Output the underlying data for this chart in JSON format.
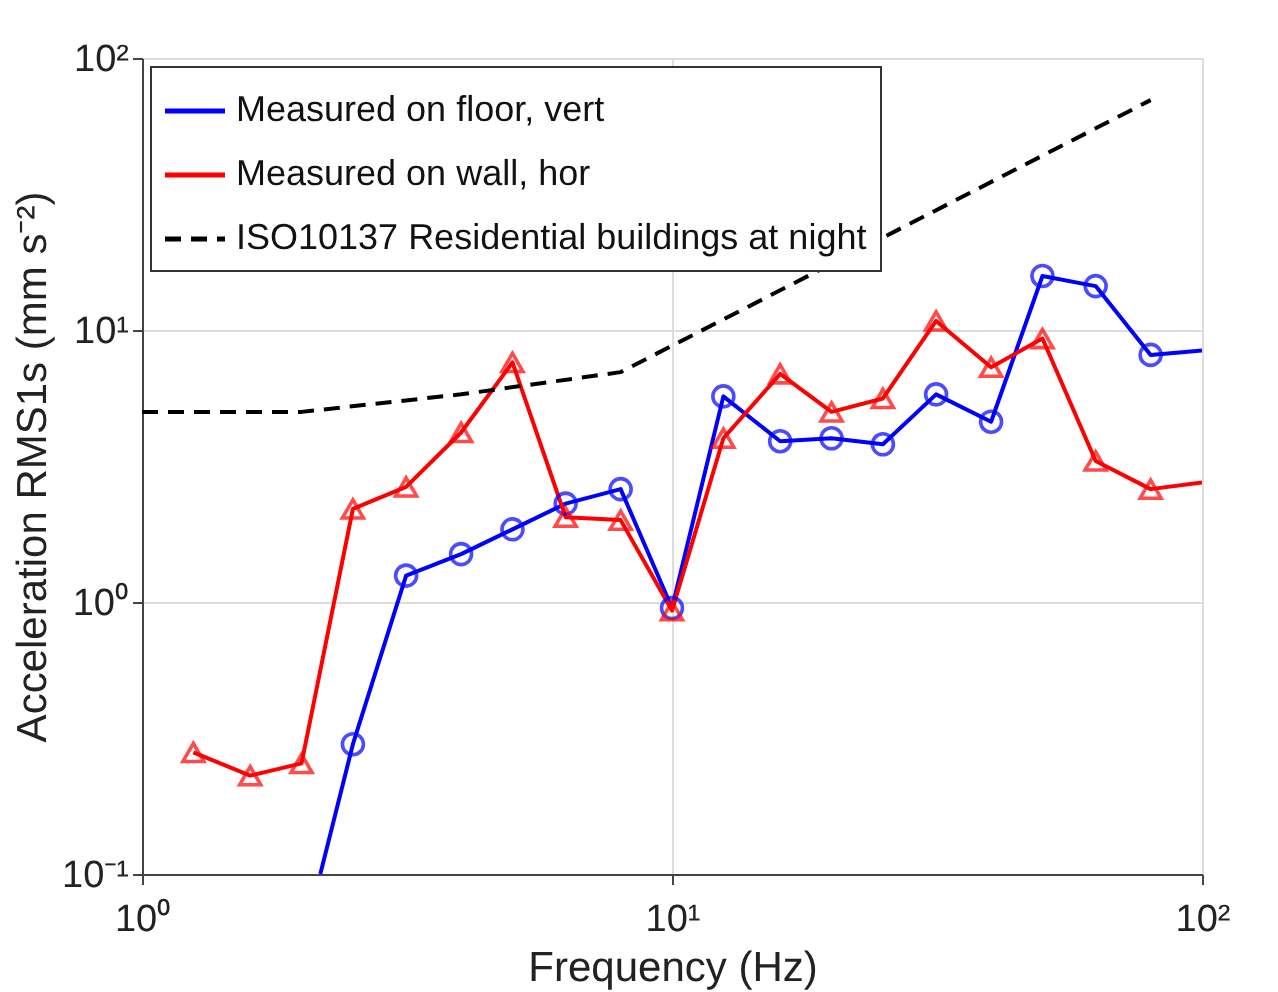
{
  "chart_data": {
    "type": "line",
    "xlabel": "Frequency (Hz)",
    "ylabel": "Acceleration RMS1s (mm s⁻²)",
    "log": "xy",
    "grid": true,
    "legend": "top left",
    "xlim": [
      1,
      100
    ],
    "ylim": [
      0.1,
      100
    ],
    "xticks": [
      {
        "value": 1,
        "label": "10⁰"
      },
      {
        "value": 10,
        "label": "10¹"
      },
      {
        "value": 100,
        "label": "10²"
      }
    ],
    "yticks": [
      {
        "value": 0.1,
        "label": "10⁻¹"
      },
      {
        "value": 1,
        "label": "10⁰"
      },
      {
        "value": 10,
        "label": "10¹"
      },
      {
        "value": 100,
        "label": "10²"
      }
    ],
    "series": [
      {
        "name": "Measured on floor, vert",
        "color": "#0000ff",
        "marker": "circle",
        "line_style": "solid",
        "x": [
          2.17,
          2.5,
          3.15,
          4,
          5,
          6.3,
          8,
          10,
          12.5,
          16,
          20,
          25,
          31.5,
          40,
          50,
          63,
          80,
          100
        ],
        "values": [
          0.1,
          0.3,
          1.25,
          1.5,
          1.85,
          2.3,
          2.6,
          0.95,
          5.7,
          3.9,
          4.0,
          3.8,
          5.8,
          4.6,
          15.8,
          14.5,
          8.1,
          8.4
        ]
      },
      {
        "name": "Measured on wall, hor",
        "color": "#ff0000",
        "marker": "triangle",
        "line_style": "solid",
        "x": [
          1.25,
          1.6,
          2,
          2.5,
          3.15,
          4,
          5,
          6.3,
          8,
          10,
          12.5,
          16,
          20,
          25,
          31.5,
          40,
          50,
          63,
          80,
          100
        ],
        "values": [
          0.28,
          0.23,
          0.255,
          2.2,
          2.65,
          4.2,
          7.6,
          2.05,
          2.0,
          0.93,
          4.0,
          6.9,
          5.0,
          5.6,
          10.8,
          7.3,
          9.3,
          3.3,
          2.6,
          2.75
        ]
      },
      {
        "name": "ISO10137 Residential buildings at night",
        "color": "#000000",
        "marker": "none",
        "line_style": "dashed",
        "x": [
          1,
          2,
          4,
          8,
          80
        ],
        "values": [
          5,
          5,
          5.8,
          7,
          70
        ]
      }
    ]
  }
}
